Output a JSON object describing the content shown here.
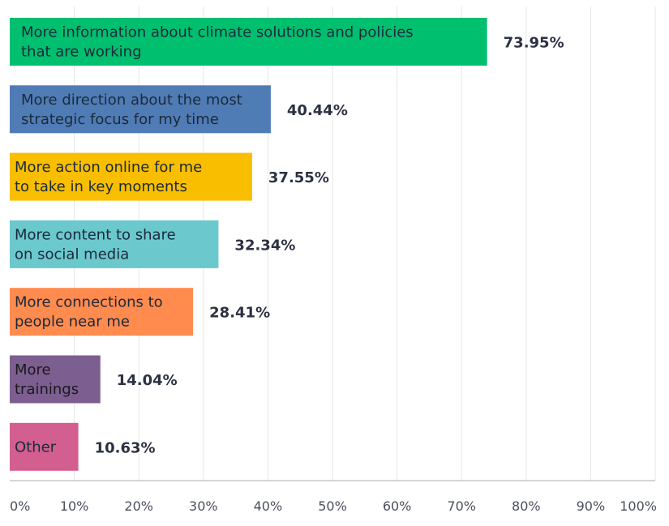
{
  "chart_data": {
    "type": "bar",
    "orientation": "horizontal",
    "categories": [
      [
        "More information about climate solutions and policies",
        "that are working"
      ],
      [
        "More direction about the most",
        "strategic focus for my time"
      ],
      [
        "More action online for me",
        "to take in key moments"
      ],
      [
        "More content to share",
        "on social media"
      ],
      [
        "More connections to",
        "people near me"
      ],
      [
        "More",
        "trainings"
      ],
      [
        "Other"
      ]
    ],
    "values": [
      73.95,
      40.44,
      37.55,
      32.34,
      28.41,
      14.04,
      10.63
    ],
    "value_labels": [
      "73.95%",
      "40.44%",
      "37.55%",
      "32.34%",
      "28.41%",
      "14.04%",
      "10.63%"
    ],
    "colors": [
      "#00bf6f",
      "#507cb6",
      "#f9be00",
      "#6bc8cd",
      "#ff8b4f",
      "#7d5e90",
      "#d25f90"
    ],
    "xlim": [
      0,
      100
    ],
    "x_ticks": [
      "0%",
      "10%",
      "20%",
      "30%",
      "40%",
      "50%",
      "60%",
      "70%",
      "80%",
      "90%",
      "100%"
    ],
    "grid": true,
    "xlabel": "",
    "ylabel": ""
  }
}
